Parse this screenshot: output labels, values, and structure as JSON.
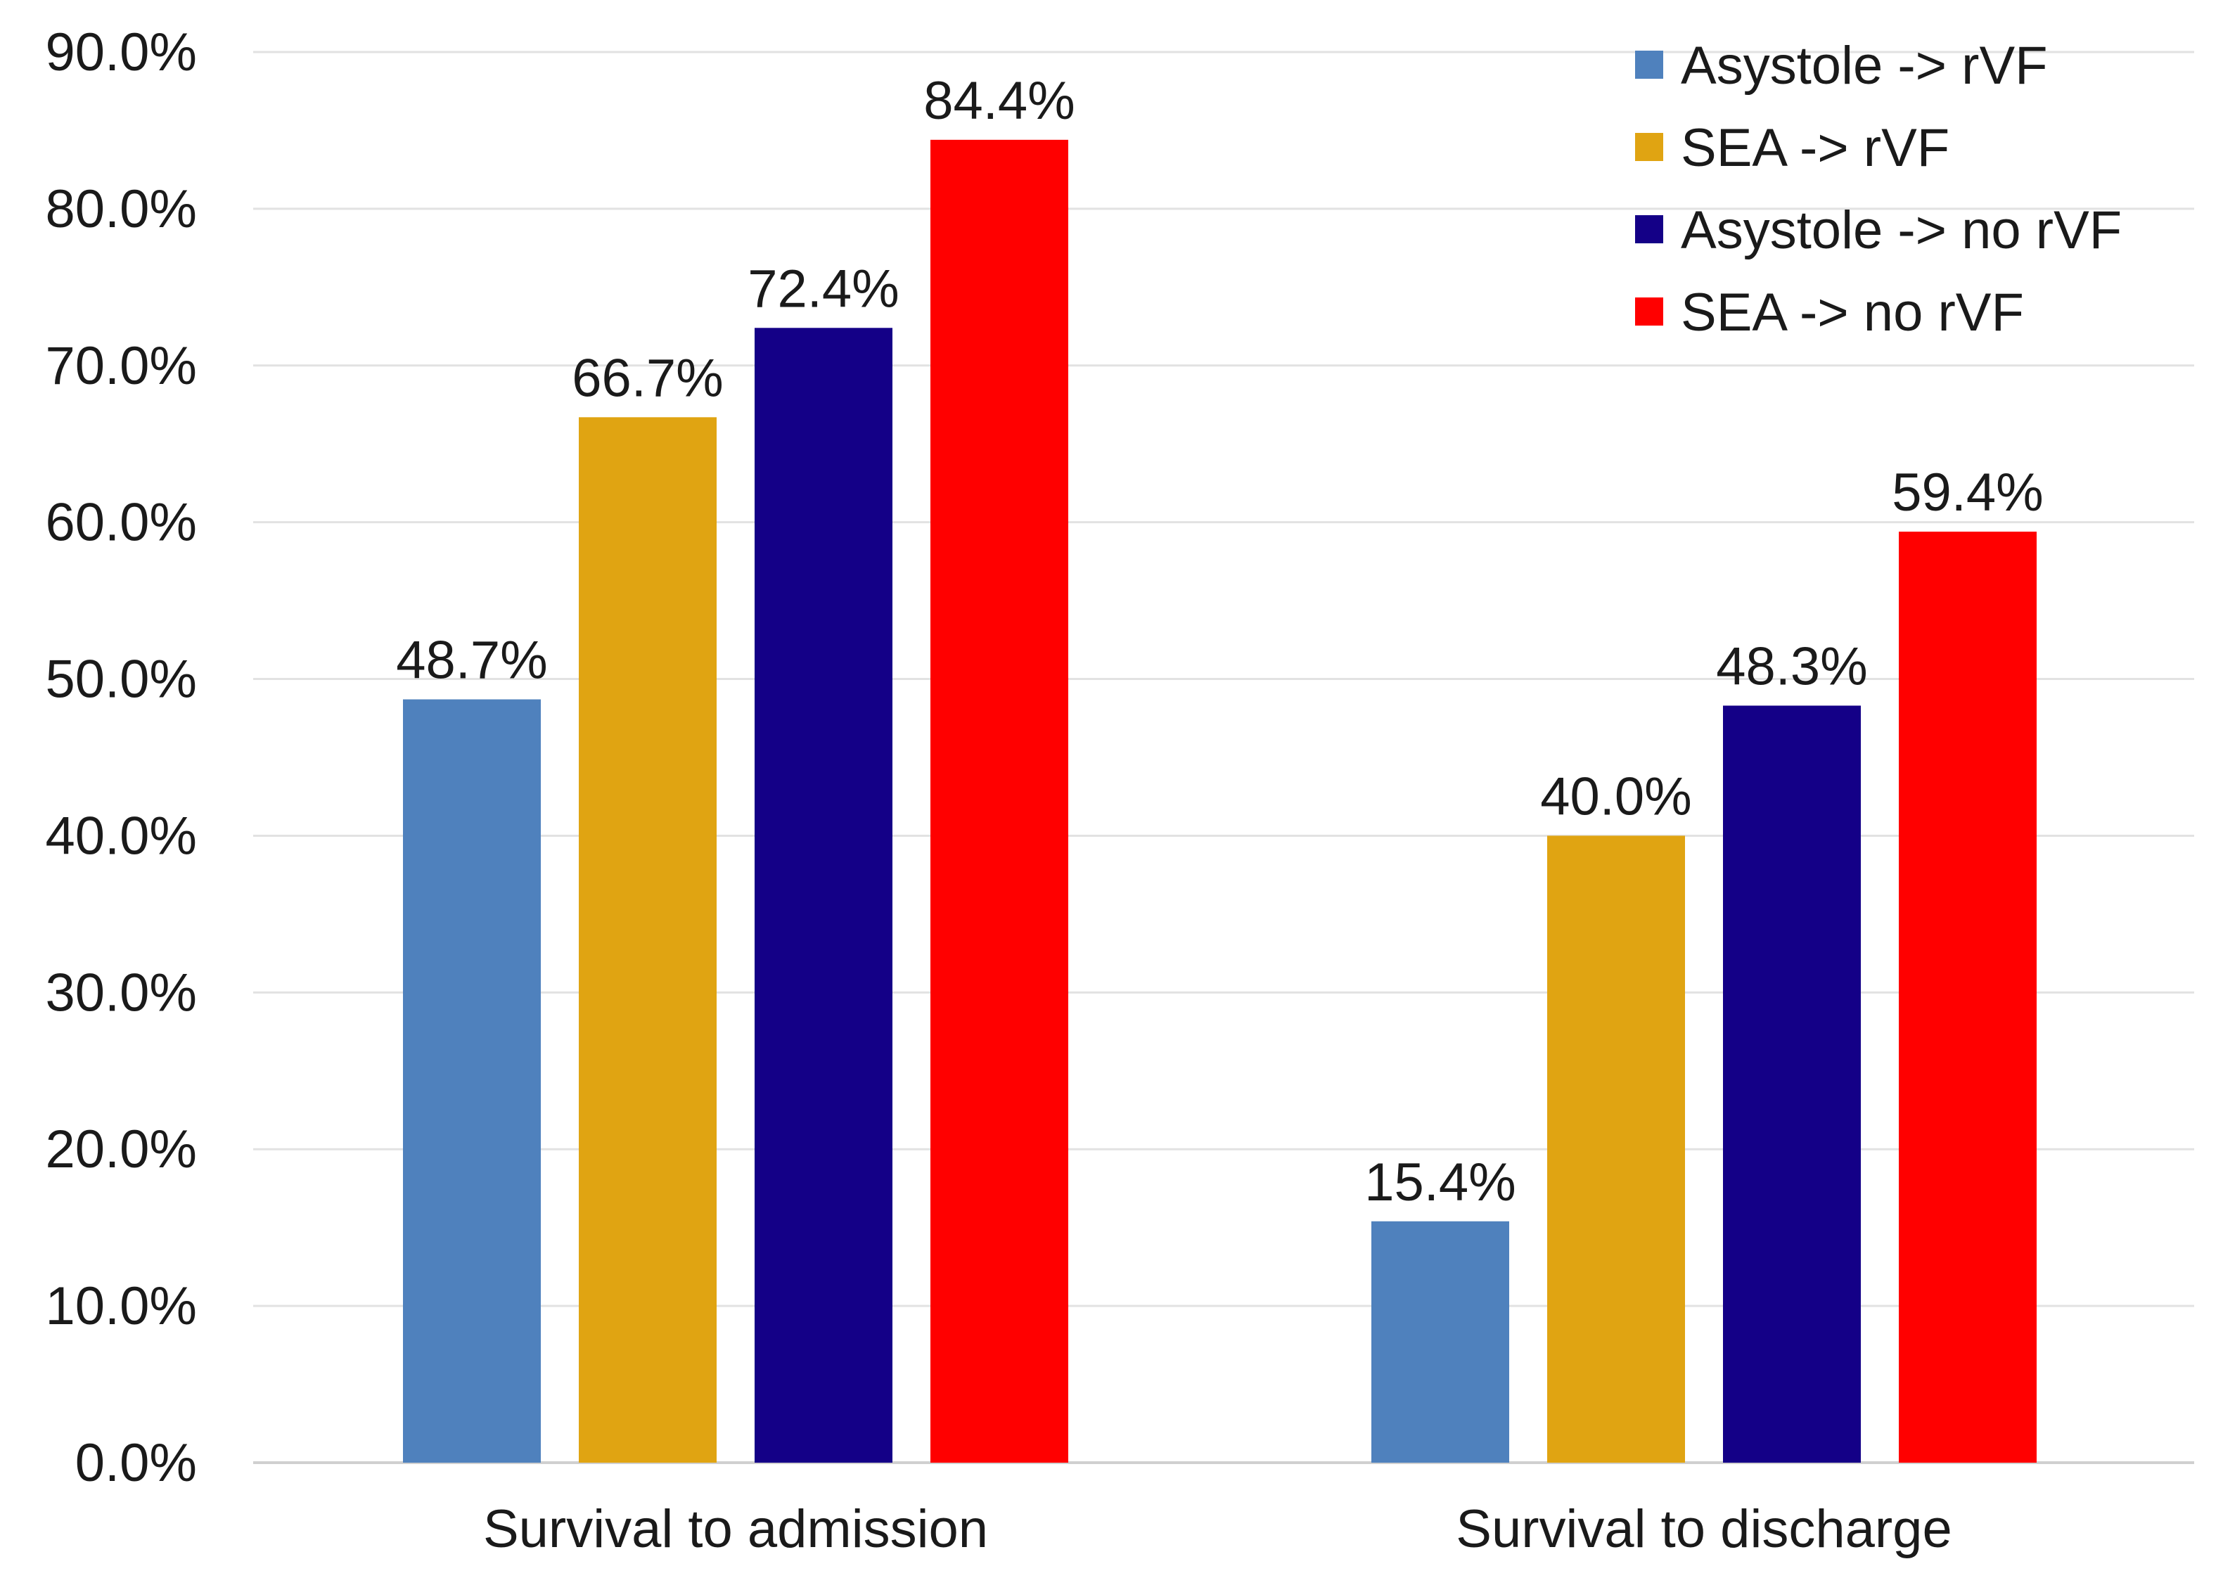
{
  "chart_data": {
    "type": "bar",
    "title": "",
    "xlabel": "",
    "ylabel": "",
    "ylim": [
      0,
      90
    ],
    "yticks": [
      0,
      10,
      20,
      30,
      40,
      50,
      60,
      70,
      80,
      90
    ],
    "ytick_labels": [
      "0.0%",
      "10.0%",
      "20.0%",
      "30.0%",
      "40.0%",
      "50.0%",
      "60.0%",
      "70.0%",
      "80.0%",
      "90.0%"
    ],
    "grid": true,
    "legend_position": "top-right",
    "categories": [
      "Survival to admission",
      "Survival to discharge"
    ],
    "series": [
      {
        "name": "Asystole -> rVF",
        "color": "#4f81bd",
        "values": [
          48.7,
          15.4
        ],
        "labels": [
          "48.7%",
          "15.4%"
        ]
      },
      {
        "name": "SEA -> rVF",
        "color": "#e0a412",
        "values": [
          66.7,
          40.0
        ],
        "labels": [
          "66.7%",
          "40.0%"
        ]
      },
      {
        "name": "Asystole -> no rVF",
        "color": "#140087",
        "values": [
          72.4,
          48.3
        ],
        "labels": [
          "72.4%",
          "48.3%"
        ]
      },
      {
        "name": "SEA -> no rVF",
        "color": "#ff0000",
        "values": [
          84.4,
          59.4
        ],
        "labels": [
          "84.4%",
          "59.4%"
        ]
      }
    ]
  }
}
